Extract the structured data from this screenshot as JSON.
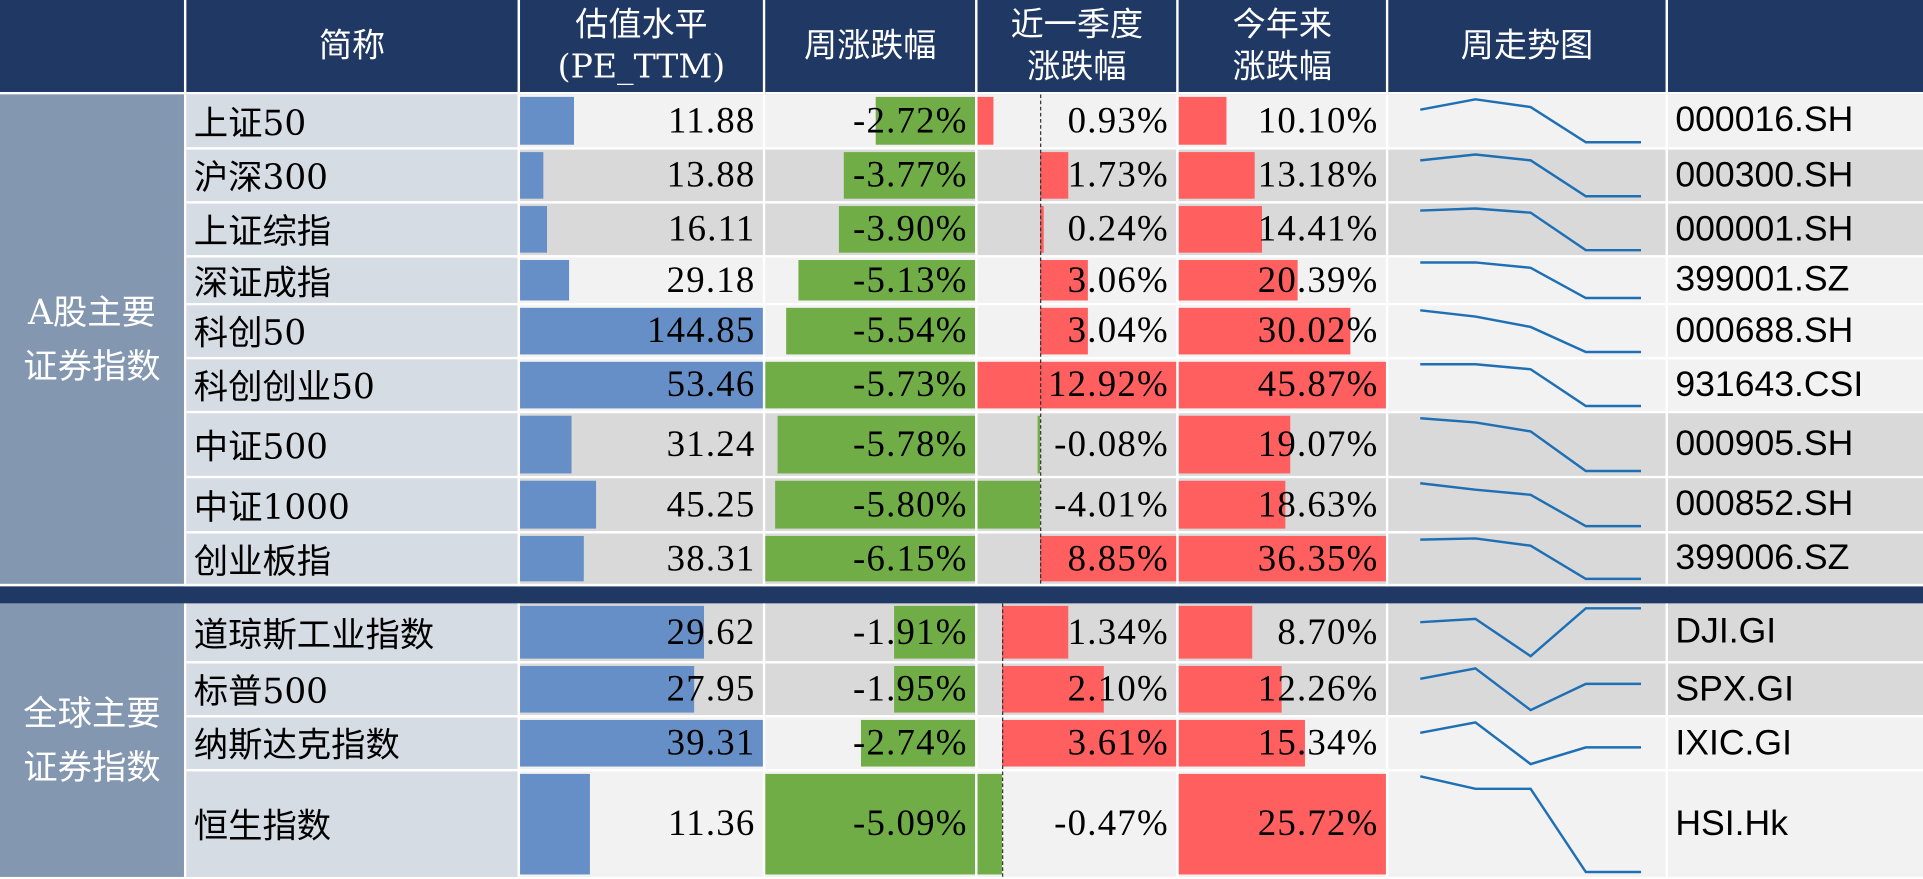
{
  "header": {
    "name": "简称",
    "pe_line1": "估值水平",
    "pe_line2": "(PE_TTM)",
    "week": "周涨跌幅",
    "quarter_line1": "近一季度",
    "quarter_line2": "涨跌幅",
    "ytd_line1": "今年来",
    "ytd_line2": "涨跌幅",
    "trend": "周走势图"
  },
  "colors": {
    "header_bg": "#1f3864",
    "group_bg": "#8497b0",
    "name_bg": "#d6dce4",
    "pe_bar": "#658fc6",
    "negative_bar": "#70ad47",
    "positive_bar": "#ff5f5f",
    "sparkline": "#1f6fb5"
  },
  "groups": [
    {
      "label_line1": "A股主要",
      "label_line2": "证券指数",
      "quarter_axis_frac": 0.31,
      "rows": [
        {
          "name": "上证50",
          "pe": "11.88",
          "pe_bar": 0.22,
          "week": "-2.72%",
          "week_bar": 0.47,
          "quarter": "0.93%",
          "quarter_bar": [
            0,
            0.08
          ],
          "quarter_sign": "pos",
          "ytd": "10.10%",
          "ytd_bar": 0.23,
          "trend": [
            0.76,
            1,
            0.82,
            0,
            0
          ],
          "code": "000016.SH",
          "shade": "light"
        },
        {
          "name": "沪深300",
          "pe": "13.88",
          "pe_bar": 0.095,
          "week": "-3.77%",
          "week_bar": 0.62,
          "quarter": "1.73%",
          "quarter_bar": [
            0.31,
            0.45
          ],
          "quarter_sign": "pos",
          "ytd": "13.18%",
          "ytd_bar": 0.36,
          "trend": [
            0.86,
            1,
            0.86,
            0,
            0
          ],
          "code": "000300.SH",
          "shade": "gray"
        },
        {
          "name": "上证综指",
          "pe": "16.11",
          "pe_bar": 0.11,
          "week": "-3.90%",
          "week_bar": 0.64,
          "quarter": "0.24%",
          "quarter_bar": [
            0.31,
            0.33
          ],
          "quarter_sign": "pos",
          "ytd": "14.41%",
          "ytd_bar": 0.4,
          "trend": [
            0.95,
            1,
            0.9,
            0,
            0
          ],
          "code": "000001.SH",
          "shade": "gray"
        },
        {
          "name": "深证成指",
          "pe": "29.18",
          "pe_bar": 0.2,
          "week": "-5.13%",
          "week_bar": 0.83,
          "quarter": "3.06%",
          "quarter_bar": [
            0.31,
            0.55
          ],
          "quarter_sign": "pos",
          "ytd": "20.39%",
          "ytd_bar": 0.57,
          "trend": [
            1,
            1,
            0.85,
            0,
            0
          ],
          "code": "399001.SZ",
          "shade": "light"
        },
        {
          "name": "科创50",
          "pe": "144.85",
          "pe_bar": 1,
          "week": "-5.54%",
          "week_bar": 0.89,
          "quarter": "3.04%",
          "quarter_bar": [
            0.31,
            0.55
          ],
          "quarter_sign": "pos",
          "ytd": "30.02%",
          "ytd_bar": 0.82,
          "trend": [
            1,
            0.85,
            0.6,
            0,
            0
          ],
          "code": "000688.SH",
          "shade": "light"
        },
        {
          "name": "科创创业50",
          "pe": "53.46",
          "pe_bar": 1,
          "week": "-5.73%",
          "week_bar": 1,
          "quarter": "12.92%",
          "quarter_bar": [
            0,
            1
          ],
          "quarter_sign": "pos",
          "ytd": "45.87%",
          "ytd_bar": 1,
          "trend": [
            1,
            1,
            0.88,
            0,
            0
          ],
          "code": "931643.CSI",
          "shade": "light"
        },
        {
          "name": "中证500",
          "pe": "31.24",
          "pe_bar": 0.21,
          "week": "-5.78%",
          "week_bar": 0.93,
          "quarter": "-0.08%",
          "quarter_bar": [
            0.3,
            0.31
          ],
          "quarter_sign": "neg",
          "ytd": "19.07%",
          "ytd_bar": 0.53,
          "trend": [
            1,
            0.92,
            0.75,
            0,
            0
          ],
          "code": "000905.SH",
          "shade": "gray"
        },
        {
          "name": "中证1000",
          "pe": "45.25",
          "pe_bar": 0.31,
          "week": "-5.80%",
          "week_bar": 0.94,
          "quarter": "-4.01%",
          "quarter_bar": [
            0,
            0.31
          ],
          "quarter_sign": "neg",
          "ytd": "18.63%",
          "ytd_bar": 0.51,
          "trend": [
            1,
            0.85,
            0.73,
            0,
            0
          ],
          "code": "000852.SH",
          "shade": "gray"
        },
        {
          "name": "创业板指",
          "pe": "38.31",
          "pe_bar": 0.26,
          "week": "-6.15%",
          "week_bar": 1,
          "quarter": "8.85%",
          "quarter_bar": [
            0.31,
            1
          ],
          "quarter_sign": "pos",
          "ytd": "36.35%",
          "ytd_bar": 1,
          "trend": [
            0.97,
            1,
            0.82,
            0,
            0
          ],
          "code": "399006.SZ",
          "shade": "gray"
        }
      ]
    },
    {
      "label_line1": "全球主要",
      "label_line2": "证券指数",
      "quarter_axis_frac": 0.12,
      "rows": [
        {
          "name": "道琼斯工业指数",
          "pe": "29.62",
          "pe_bar": 0.75,
          "week": "-1.91%",
          "week_bar": 0.38,
          "quarter": "1.34%",
          "quarter_bar": [
            0.12,
            0.45
          ],
          "quarter_sign": "pos",
          "ytd": "8.70%",
          "ytd_bar": 0.35,
          "trend": [
            0.71,
            0.78,
            0,
            1,
            1
          ],
          "code": "DJI.GI",
          "shade": "gray"
        },
        {
          "name": "标普500",
          "pe": "27.95",
          "pe_bar": 0.71,
          "week": "-1.95%",
          "week_bar": 0.38,
          "quarter": "2.10%",
          "quarter_bar": [
            0.12,
            0.63
          ],
          "quarter_sign": "pos",
          "ytd": "12.26%",
          "ytd_bar": 0.49,
          "trend": [
            0.75,
            1,
            0,
            0.63,
            0.63
          ],
          "code": "SPX.GI",
          "shade": "gray"
        },
        {
          "name": "纳斯达克指数",
          "pe": "39.31",
          "pe_bar": 1,
          "week": "-2.74%",
          "week_bar": 0.54,
          "quarter": "3.61%",
          "quarter_bar": [
            0.12,
            1
          ],
          "quarter_sign": "pos",
          "ytd": "15.34%",
          "ytd_bar": 0.6,
          "trend": [
            0.75,
            1,
            0,
            0.4,
            0.4
          ],
          "code": "IXIC.GI",
          "shade": "light"
        },
        {
          "name": "恒生指数",
          "pe": "11.36",
          "pe_bar": 0.285,
          "week": "-5.09%",
          "week_bar": 1,
          "quarter": "-0.47%",
          "quarter_bar": [
            0,
            0.12
          ],
          "quarter_sign": "neg",
          "ytd": "25.72%",
          "ytd_bar": 1,
          "trend": [
            1,
            0.87,
            0.87,
            0,
            0
          ],
          "code": "HSI.Hk",
          "shade": "light"
        }
      ]
    }
  ]
}
